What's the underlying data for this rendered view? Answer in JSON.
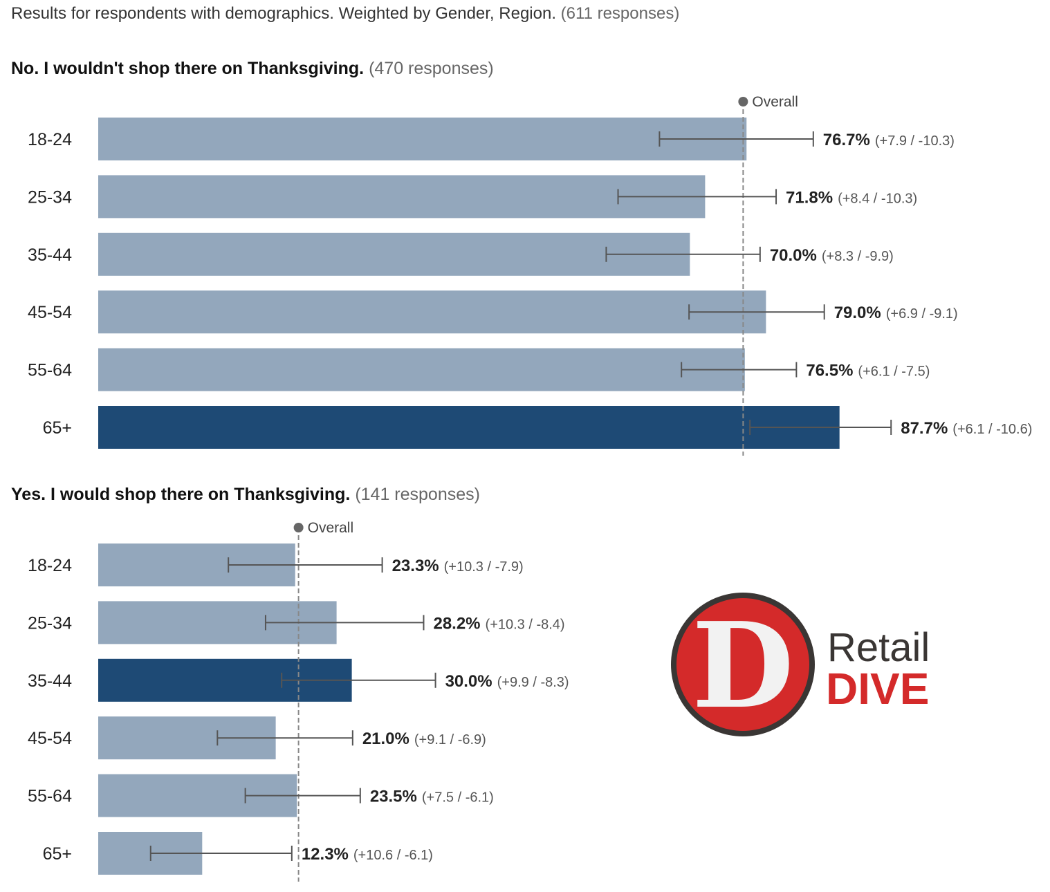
{
  "header": {
    "text": "Results for respondents with demographics. Weighted by Gender, Region.",
    "responses": "(611 responses)"
  },
  "colors": {
    "bar": "#93a7bc",
    "bar_highlight": "#1e4a75",
    "error_bar": "#555555",
    "overall_line": "#888888",
    "logo_red": "#d42a2a",
    "logo_dark": "#3a3634"
  },
  "logo": {
    "letter": "D",
    "word1": "Retail",
    "word2": "DIVE"
  },
  "chart_data": [
    {
      "type": "bar",
      "orientation": "horizontal",
      "title": "No. I wouldn't shop there on Thanksgiving.",
      "responses": "(470 responses)",
      "overall_label": "Overall",
      "overall_value": 76.3,
      "xlim": [
        0,
        100
      ],
      "categories": [
        "18-24",
        "25-34",
        "35-44",
        "45-54",
        "55-64",
        "65+"
      ],
      "values": [
        76.7,
        71.8,
        70.0,
        79.0,
        76.5,
        87.7
      ],
      "value_labels": [
        "76.7%",
        "71.8%",
        "70.0%",
        "79.0%",
        "76.5%",
        "87.7%"
      ],
      "error_plus": [
        7.9,
        8.4,
        8.3,
        6.9,
        6.1,
        6.1
      ],
      "error_minus": [
        10.3,
        10.3,
        9.9,
        9.1,
        7.5,
        10.6
      ],
      "error_labels": [
        "(+7.9 / -10.3)",
        "(+8.4 / -10.3)",
        "(+8.3 / -9.9)",
        "(+6.9 / -9.1)",
        "(+6.1 / -7.5)",
        "(+6.1 / -10.6)"
      ],
      "highlight": [
        false,
        false,
        false,
        false,
        false,
        true
      ]
    },
    {
      "type": "bar",
      "orientation": "horizontal",
      "title": "Yes. I would shop there on Thanksgiving.",
      "responses": "(141 responses)",
      "overall_label": "Overall",
      "overall_value": 23.7,
      "xlim": [
        0,
        100
      ],
      "categories": [
        "18-24",
        "25-34",
        "35-44",
        "45-54",
        "55-64",
        "65+"
      ],
      "values": [
        23.3,
        28.2,
        30.0,
        21.0,
        23.5,
        12.3
      ],
      "value_labels": [
        "23.3%",
        "28.2%",
        "30.0%",
        "21.0%",
        "23.5%",
        "12.3%"
      ],
      "error_plus": [
        10.3,
        10.3,
        9.9,
        9.1,
        7.5,
        10.6
      ],
      "error_minus": [
        7.9,
        8.4,
        8.3,
        6.9,
        6.1,
        6.1
      ],
      "error_labels": [
        "(+10.3 / -7.9)",
        "(+10.3 / -8.4)",
        "(+9.9 / -8.3)",
        "(+9.1 / -6.9)",
        "(+7.5 / -6.1)",
        "(+10.6 / -6.1)"
      ],
      "highlight": [
        false,
        false,
        true,
        false,
        false,
        false
      ]
    }
  ]
}
